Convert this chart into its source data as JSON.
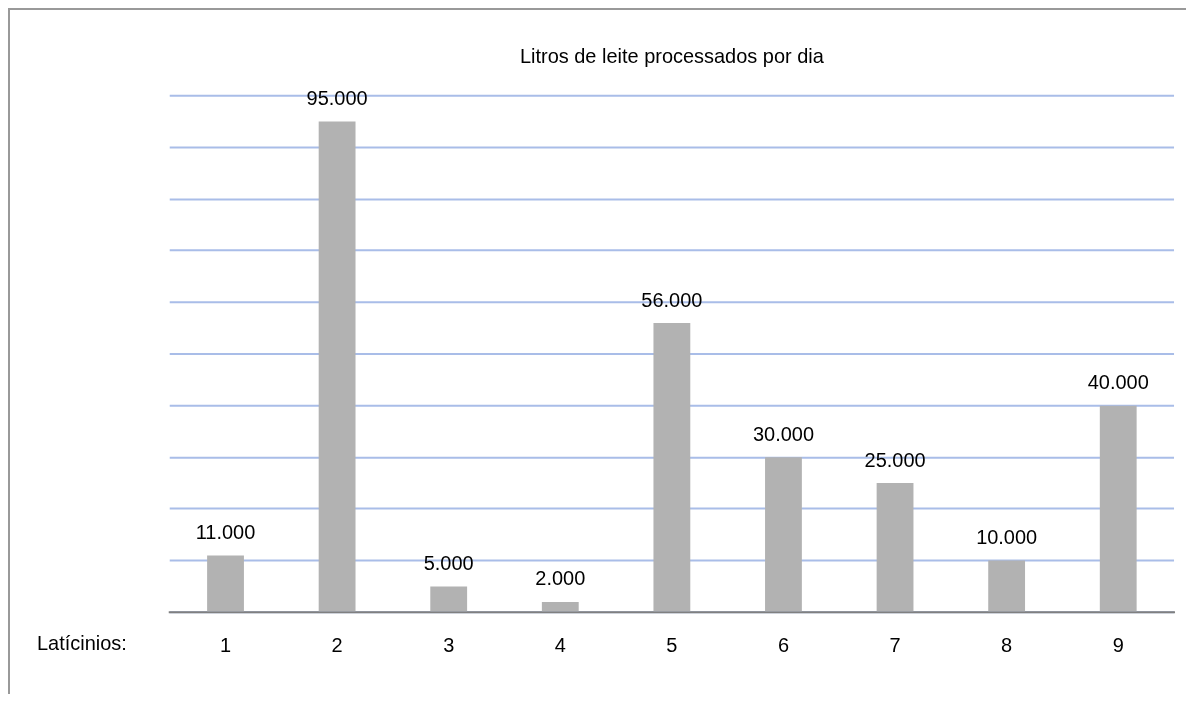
{
  "chart_data": {
    "type": "bar",
    "title": "Litros de leite processados por dia",
    "xlabel": "Latícinios:",
    "categories": [
      "1",
      "2",
      "3",
      "4",
      "5",
      "6",
      "7",
      "8",
      "9"
    ],
    "values": [
      11000,
      95000,
      5000,
      2000,
      56000,
      30000,
      25000,
      10000,
      40000
    ],
    "value_labels": [
      "11.000",
      "95.000",
      "5.000",
      "2.000",
      "56.000",
      "30.000",
      "25.000",
      "10.000",
      "40.000"
    ],
    "color": "#b2b2b2",
    "ylim": [
      0,
      100000
    ],
    "yticks": [
      {
        "value": 0,
        "label": null
      },
      {
        "value": 10000,
        "label": null
      },
      {
        "value": 20000,
        "label": null
      },
      {
        "value": 30000,
        "label": null
      },
      {
        "value": 40000,
        "label": null
      },
      {
        "value": 50000,
        "label": null
      },
      {
        "value": 60000,
        "label": null
      },
      {
        "value": 70000,
        "label": null
      },
      {
        "value": 80000,
        "label": null
      },
      {
        "value": 90000,
        "label": null
      },
      {
        "value": 100000,
        "label": null
      }
    ],
    "tick_labels": "x",
    "grid": "y",
    "legend": false
  }
}
